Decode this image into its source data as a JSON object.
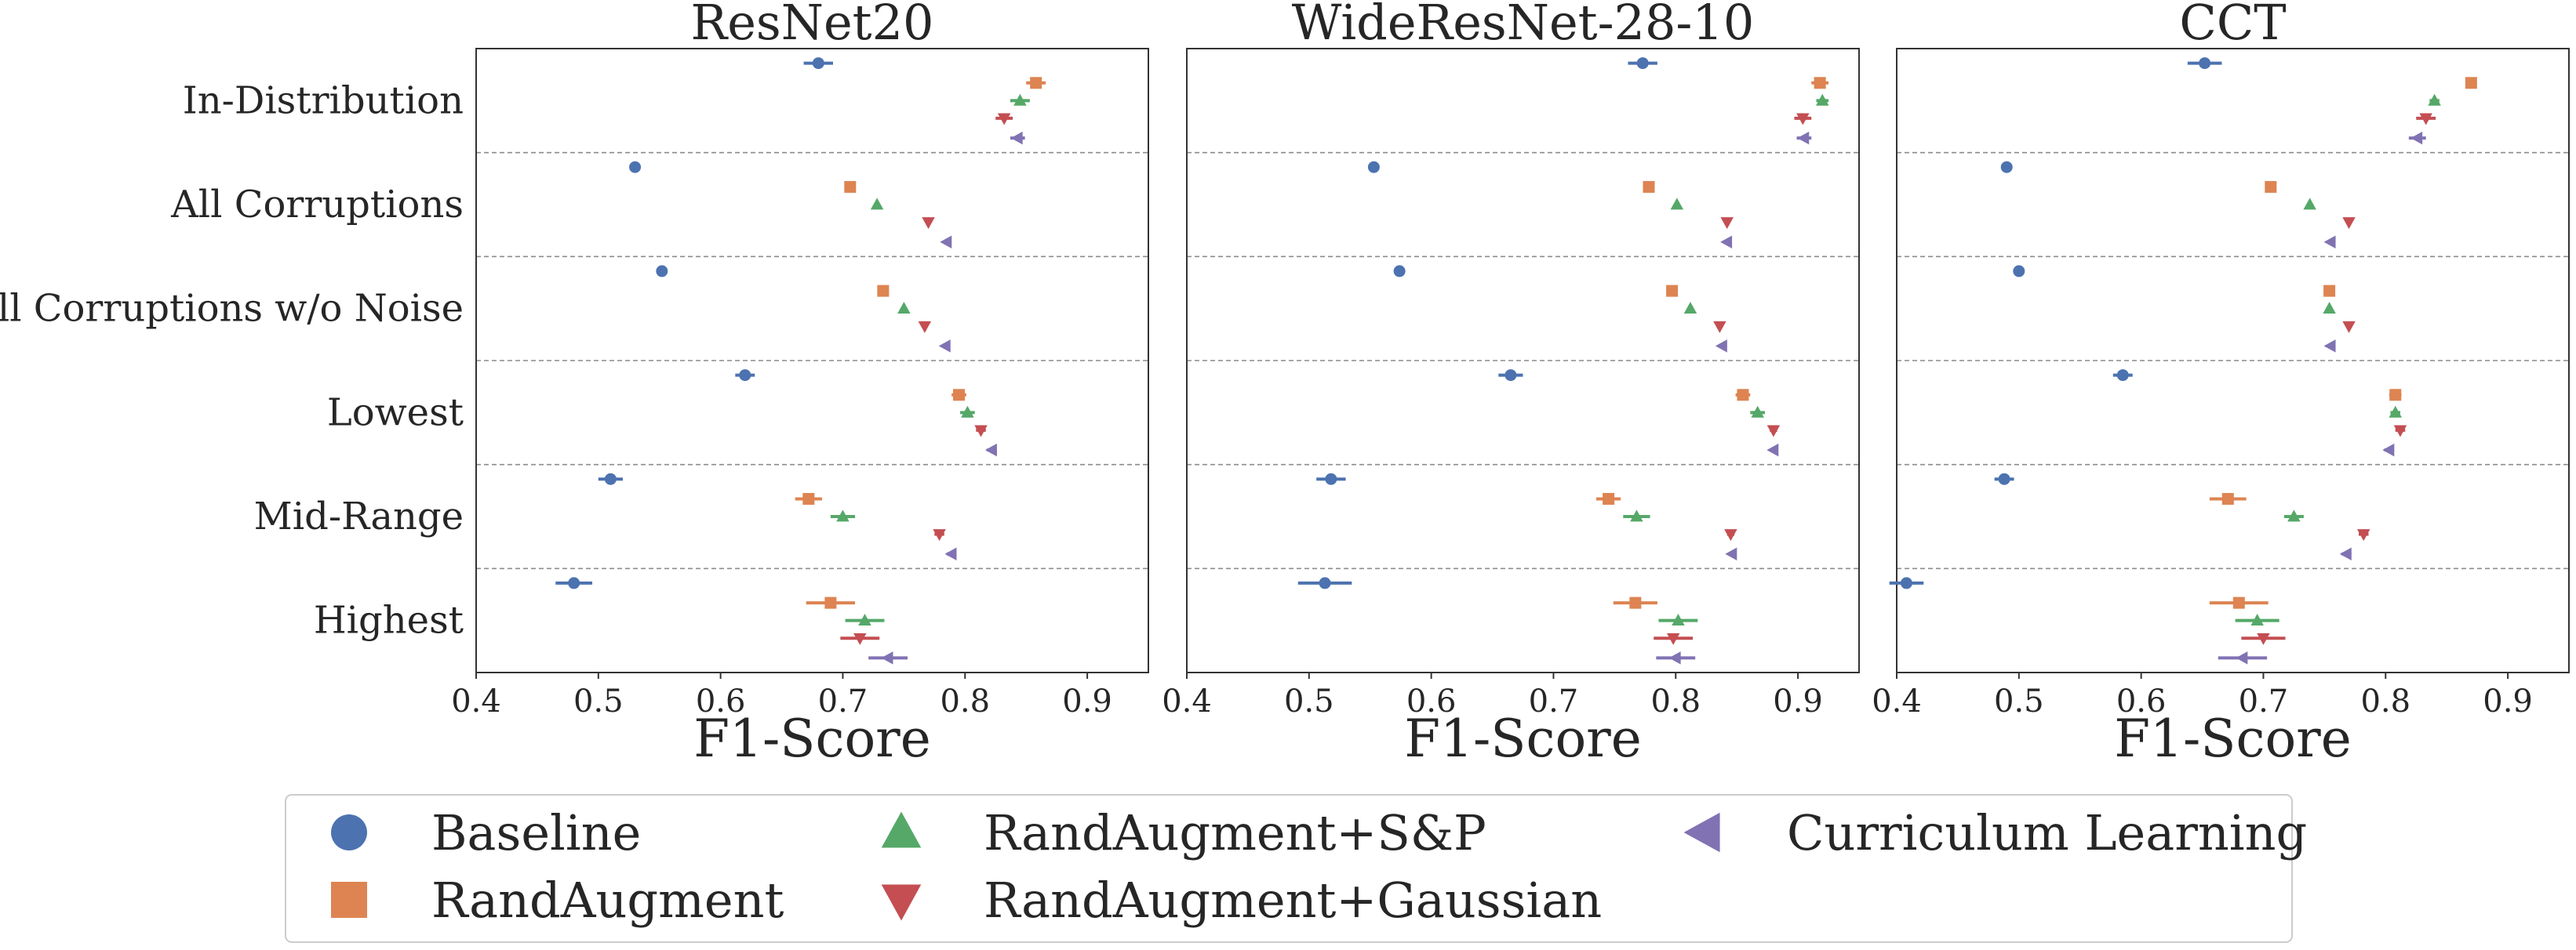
{
  "chart_data": {
    "type": "scatter",
    "categories": [
      "In-Distribution",
      "All Corruptions",
      "All Corruptions w/o Noise",
      "Lowest",
      "Mid-Range",
      "Highest"
    ],
    "xlabel": "F1-Score",
    "xlim": [
      0.4,
      0.95
    ],
    "xticks": [
      "0.4",
      "0.5",
      "0.6",
      "0.7",
      "0.8",
      "0.9"
    ],
    "grid": "dashed separators between categories",
    "legend": {
      "position": "bottom",
      "columns": 3,
      "items": [
        {
          "label": "Baseline",
          "color": "#4c72b0",
          "marker": "circle"
        },
        {
          "label": "RandAugment",
          "color": "#dd8452",
          "marker": "square"
        },
        {
          "label": "RandAugment+S&P",
          "color": "#55a868",
          "marker": "triangle-up"
        },
        {
          "label": "RandAugment+Gaussian",
          "color": "#c44e52",
          "marker": "triangle-down"
        },
        {
          "label": "Curriculum Learning",
          "color": "#8172b3",
          "marker": "triangle-left"
        }
      ]
    },
    "panels": [
      {
        "title": "ResNet20",
        "series": [
          {
            "name": "Baseline",
            "values": [
              0.68,
              0.53,
              0.552,
              0.62,
              0.51,
              0.48
            ],
            "errors": [
              0.012,
              0.002,
              0.002,
              0.008,
              0.01,
              0.015
            ]
          },
          {
            "name": "RandAugment",
            "values": [
              0.858,
              0.706,
              0.733,
              0.795,
              0.672,
              0.69
            ],
            "errors": [
              0.008,
              0.002,
              0.002,
              0.006,
              0.011,
              0.02
            ]
          },
          {
            "name": "RandAugment+S&P",
            "values": [
              0.845,
              0.728,
              0.75,
              0.802,
              0.7,
              0.718
            ],
            "errors": [
              0.008,
              0.002,
              0.002,
              0.006,
              0.01,
              0.016
            ]
          },
          {
            "name": "RandAugment+Gaussian",
            "values": [
              0.832,
              0.77,
              0.767,
              0.813,
              0.779,
              0.714
            ],
            "errors": [
              0.007,
              0.002,
              0.002,
              0.004,
              0.004,
              0.016
            ]
          },
          {
            "name": "Curriculum Learning",
            "values": [
              0.843,
              0.785,
              0.784,
              0.822,
              0.789,
              0.737
            ],
            "errors": [
              0.006,
              0.002,
              0.002,
              0.004,
              0.004,
              0.016
            ]
          }
        ]
      },
      {
        "title": "WideResNet-28-10",
        "series": [
          {
            "name": "Baseline",
            "values": [
              0.773,
              0.553,
              0.574,
              0.665,
              0.518,
              0.513
            ],
            "errors": [
              0.012,
              0.002,
              0.002,
              0.01,
              0.012,
              0.022
            ]
          },
          {
            "name": "RandAugment",
            "values": [
              0.918,
              0.778,
              0.797,
              0.855,
              0.745,
              0.767
            ],
            "errors": [
              0.007,
              0.002,
              0.002,
              0.006,
              0.01,
              0.018
            ]
          },
          {
            "name": "RandAugment+S&P",
            "values": [
              0.92,
              0.801,
              0.812,
              0.867,
              0.768,
              0.802
            ],
            "errors": [
              0.005,
              0.002,
              0.002,
              0.006,
              0.011,
              0.016
            ]
          },
          {
            "name": "RandAugment+Gaussian",
            "values": [
              0.904,
              0.842,
              0.836,
              0.88,
              0.845,
              0.798
            ],
            "errors": [
              0.007,
              0.002,
              0.002,
              0.003,
              0.003,
              0.016
            ]
          },
          {
            "name": "Curriculum Learning",
            "values": [
              0.905,
              0.842,
              0.838,
              0.88,
              0.846,
              0.8
            ],
            "errors": [
              0.006,
              0.002,
              0.002,
              0.003,
              0.003,
              0.016
            ]
          }
        ]
      },
      {
        "title": "CCT",
        "series": [
          {
            "name": "Baseline",
            "values": [
              0.652,
              0.49,
              0.5,
              0.585,
              0.488,
              0.408
            ],
            "errors": [
              0.014,
              0.002,
              0.002,
              0.008,
              0.008,
              0.014
            ]
          },
          {
            "name": "RandAugment",
            "values": [
              0.87,
              0.706,
              0.754,
              0.808,
              0.671,
              0.68
            ],
            "errors": [
              0.004,
              0.002,
              0.002,
              0.005,
              0.015,
              0.024
            ]
          },
          {
            "name": "RandAugment+S&P",
            "values": [
              0.84,
              0.738,
              0.754,
              0.808,
              0.725,
              0.695
            ],
            "errors": [
              0.004,
              0.002,
              0.002,
              0.004,
              0.008,
              0.018
            ]
          },
          {
            "name": "RandAugment+Gaussian",
            "values": [
              0.833,
              0.77,
              0.77,
              0.812,
              0.782,
              0.7
            ],
            "errors": [
              0.008,
              0.002,
              0.002,
              0.004,
              0.004,
              0.018
            ]
          },
          {
            "name": "Curriculum Learning",
            "values": [
              0.826,
              0.755,
              0.755,
              0.803,
              0.768,
              0.683
            ],
            "errors": [
              0.007,
              0.002,
              0.002,
              0.004,
              0.004,
              0.02
            ]
          }
        ]
      }
    ]
  }
}
